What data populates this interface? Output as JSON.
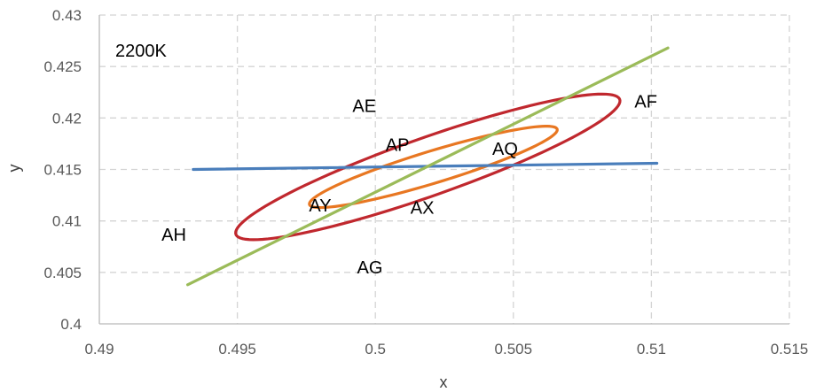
{
  "chart_data": {
    "type": "line",
    "title": "",
    "annotation": "2200K",
    "xlabel": "x",
    "ylabel": "y",
    "xlim": [
      0.49,
      0.515
    ],
    "ylim": [
      0.4,
      0.43
    ],
    "xticks": [
      0.49,
      0.495,
      0.5,
      0.505,
      0.51,
      0.515
    ],
    "xtick_labels": [
      "0.49",
      "0.495",
      "0.5",
      "0.505",
      "0.51",
      "0.515"
    ],
    "yticks": [
      0.4,
      0.405,
      0.41,
      0.415,
      0.42,
      0.425,
      0.43
    ],
    "ytick_labels": [
      "0.4",
      "0.405",
      "0.41",
      "0.415",
      "0.42",
      "0.425",
      "0.43"
    ],
    "grid": "dashed",
    "legend": "none",
    "series": [
      {
        "kind": "ellipse",
        "color": "#c0282e",
        "center": [
          0.5019,
          0.41525
        ],
        "semi_axes": [
          0.00969,
          0.00215
        ],
        "angle_deg": 45.5
      },
      {
        "kind": "ellipse",
        "color": "#e87722",
        "center": [
          0.5021,
          0.41525
        ],
        "semi_axes": [
          0.00585,
          0.00125
        ],
        "angle_deg": 41.0
      },
      {
        "kind": "line",
        "color": "#4a7ebb",
        "points": [
          [
            0.4934,
            0.415
          ],
          [
            0.5102,
            0.4156
          ]
        ]
      },
      {
        "kind": "line",
        "color": "#9bbb59",
        "points": [
          [
            0.4932,
            0.4038
          ],
          [
            0.5106,
            0.4268
          ]
        ]
      }
    ],
    "region_labels": [
      {
        "text": "AE",
        "x": 0.4996,
        "y": 0.4206
      },
      {
        "text": "AF",
        "x": 0.5098,
        "y": 0.421
      },
      {
        "text": "AP",
        "x": 0.5008,
        "y": 0.4168
      },
      {
        "text": "AQ",
        "x": 0.5047,
        "y": 0.4164
      },
      {
        "text": "AY",
        "x": 0.498,
        "y": 0.4109
      },
      {
        "text": "AX",
        "x": 0.5017,
        "y": 0.4107
      },
      {
        "text": "AH",
        "x": 0.4927,
        "y": 0.4081
      },
      {
        "text": "AG",
        "x": 0.4998,
        "y": 0.4049
      }
    ]
  }
}
